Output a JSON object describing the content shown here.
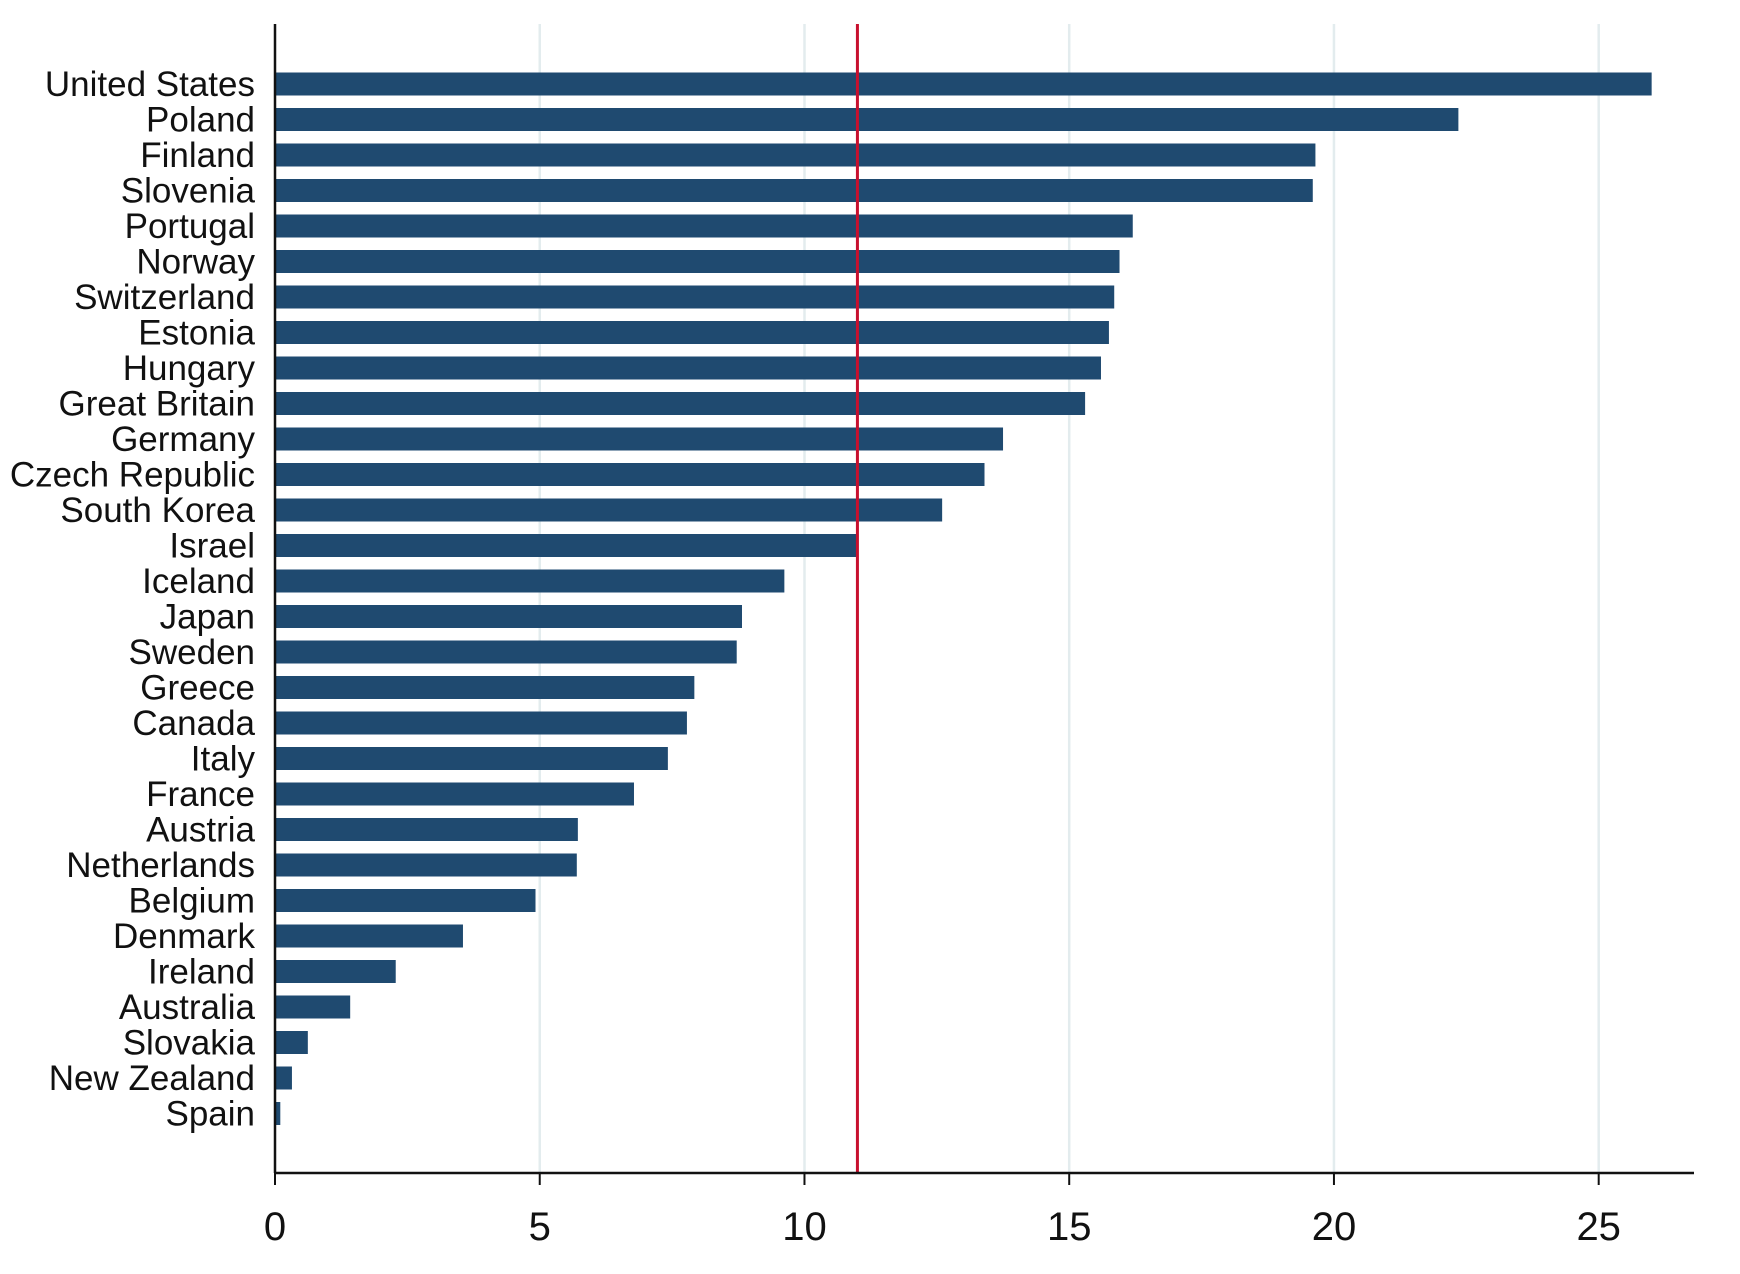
{
  "chart_data": {
    "type": "bar",
    "orientation": "horizontal",
    "categories": [
      "United States",
      "Poland",
      "Finland",
      "Slovenia",
      "Portugal",
      "Norway",
      "Switzerland",
      "Estonia",
      "Hungary",
      "Great Britain",
      "Germany",
      "Czech Republic",
      "South Korea",
      "Israel",
      "Iceland",
      "Japan",
      "Sweden",
      "Greece",
      "Canada",
      "Italy",
      "France",
      "Austria",
      "Netherlands",
      "Belgium",
      "Denmark",
      "Ireland",
      "Australia",
      "Slovakia",
      "New Zealand",
      "Spain"
    ],
    "values": [
      26.0,
      22.35,
      19.65,
      19.6,
      16.2,
      15.95,
      15.85,
      15.75,
      15.6,
      15.3,
      13.75,
      13.4,
      12.6,
      11.0,
      9.62,
      8.82,
      8.72,
      7.92,
      7.78,
      7.42,
      6.78,
      5.72,
      5.7,
      4.92,
      3.55,
      2.28,
      1.42,
      0.62,
      0.32,
      0.1
    ],
    "reference_line": {
      "x": 11.0,
      "color": "#c8102e"
    },
    "x_ticks": [
      "0",
      "5",
      "10",
      "15",
      "20",
      "25"
    ],
    "xlim": [
      0,
      26.8
    ],
    "xlabel": "",
    "ylabel": "",
    "title": "",
    "grid": "vertical",
    "legend": "none",
    "colors": {
      "bar": "#1f4a70",
      "grid": "#e3ecee",
      "axis": "#111111",
      "reference": "#c8102e"
    }
  }
}
